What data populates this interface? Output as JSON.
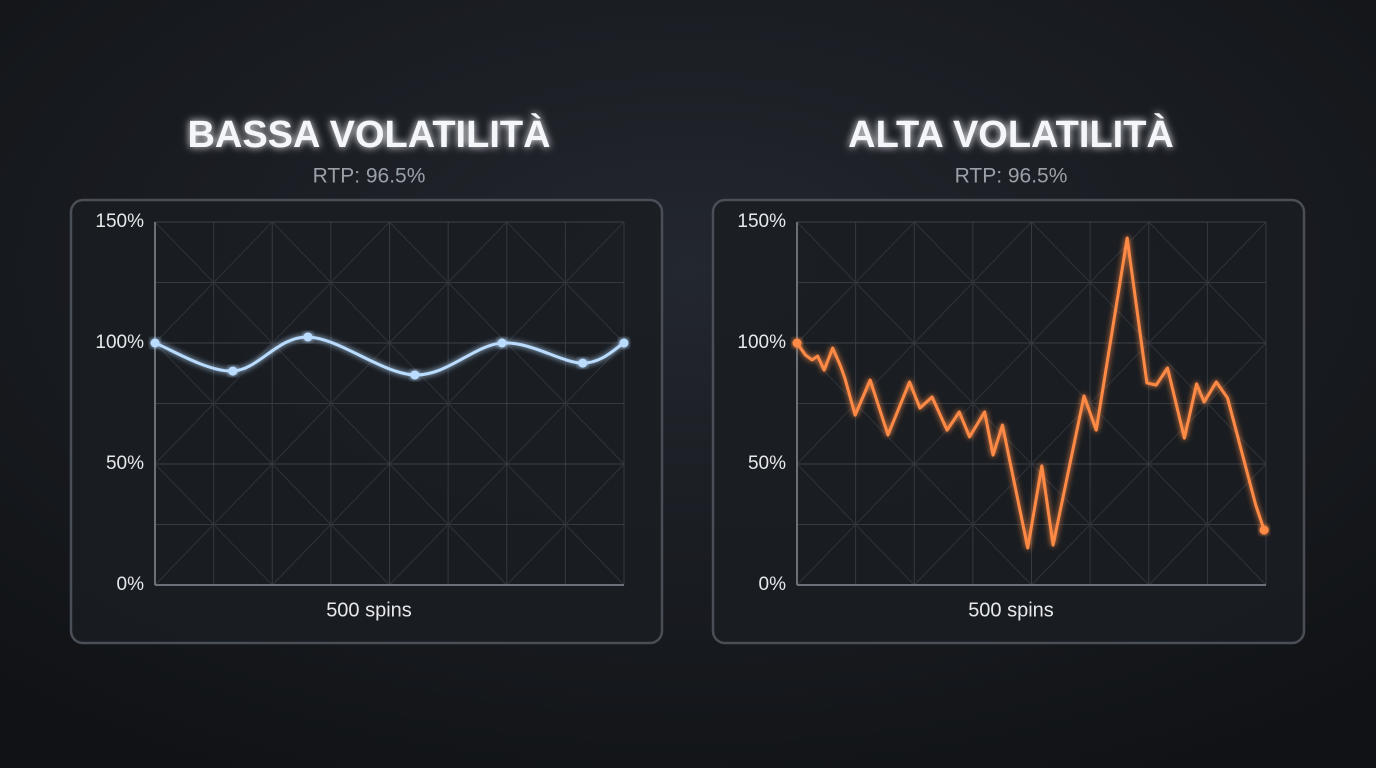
{
  "chart_data": [
    {
      "type": "line",
      "title": "BASSA VOLATILITÀ",
      "subtitle": "RTP: 96.5%",
      "x_label": "500 spins",
      "x": [
        0,
        83,
        163,
        277,
        370,
        456,
        500
      ],
      "values": [
        100,
        88.4,
        102.5,
        86.8,
        100,
        91.7,
        100
      ],
      "color": "#b9dcff",
      "smooth": true,
      "markers": "all",
      "xlim": [
        0,
        500
      ],
      "ylim": [
        0,
        150
      ],
      "yticks": [
        {
          "value": 0,
          "label": "0%"
        },
        {
          "value": 50,
          "label": "50%"
        },
        {
          "value": 100,
          "label": "100%"
        },
        {
          "value": 150,
          "label": "150%"
        }
      ],
      "grid": true
    },
    {
      "type": "line",
      "title": "ALTA VOLATILITÀ",
      "subtitle": "RTP: 96.5%",
      "x_label": "500 spins",
      "x": [
        0,
        9,
        16,
        22,
        29,
        38,
        46,
        51,
        62,
        78,
        97,
        120,
        131,
        144,
        160,
        173,
        184,
        200,
        209,
        219,
        246,
        261,
        273,
        306,
        319,
        352,
        373,
        383,
        395,
        413,
        426,
        434,
        447,
        459,
        489,
        498
      ],
      "values": [
        100,
        95.0,
        93.0,
        94.6,
        88.8,
        97.9,
        90.9,
        85.5,
        70.2,
        84.7,
        62.0,
        83.9,
        73.1,
        77.7,
        64.0,
        71.5,
        61.2,
        71.5,
        53.7,
        66.1,
        15.3,
        49.2,
        16.5,
        78.1,
        64.0,
        143.4,
        83.5,
        82.6,
        89.7,
        60.7,
        83.1,
        75.6,
        83.9,
        77.3,
        33.1,
        22.7
      ],
      "color": "#ff8a45",
      "smooth": false,
      "markers": "ends",
      "xlim": [
        0,
        500
      ],
      "ylim": [
        0,
        150
      ],
      "yticks": [
        {
          "value": 0,
          "label": "0%"
        },
        {
          "value": 50,
          "label": "50%"
        },
        {
          "value": 100,
          "label": "100%"
        },
        {
          "value": 150,
          "label": "150%"
        }
      ],
      "grid": true
    }
  ]
}
